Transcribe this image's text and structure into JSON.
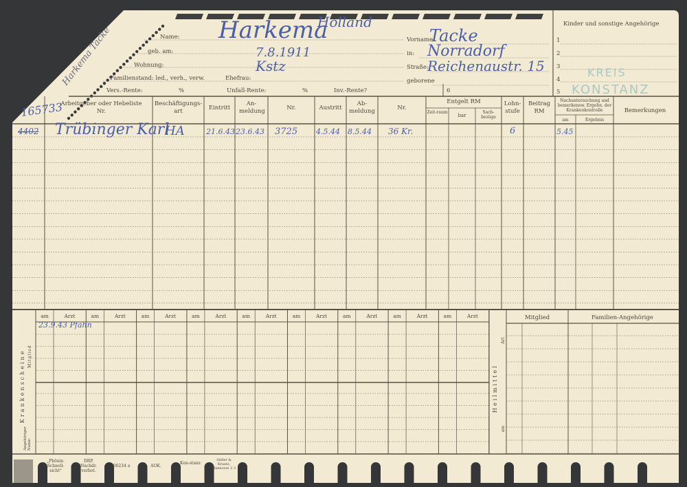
{
  "card_number": "165733",
  "margin_name": "Harkema Tacke",
  "header": {
    "name_label": "Name:",
    "name_value": "Harkema",
    "nationality_value": "Holland",
    "geb_label": "geb. am:",
    "geb_value": "7.8.1911",
    "wohnung_label": "Wohnung:",
    "wohnung_value": "Kstz",
    "familienstand_label": "Familienstand: led., verh., verw.",
    "ehefrau_label": "Ehefrau:",
    "vers_rente_label": "Vers.-Rente:",
    "percent_1": "%",
    "unfall_rente_label": "Unfall-Rente:",
    "percent_2": "%",
    "inv_rente_label": "Inv.-Rente?",
    "vorname_label": "Vorname:",
    "vorname_value": "Tacke",
    "in_label": "in:",
    "in_value": "Norradorf",
    "strasse_label": "Straße:",
    "strasse_value": "Reichenaustr. 15",
    "geborene_label": "geborene",
    "box_number": "6"
  },
  "angehoerige": {
    "title": "Kinder und sonstige Angehörige",
    "numbers": [
      "1",
      "2",
      "3",
      "4",
      "5"
    ]
  },
  "stamp": {
    "line1": "KREIS",
    "line2": "KONSTANZ",
    "color": "#9cc3c6"
  },
  "table": {
    "headers": {
      "arbeitgeber": "Arbeitgeber oder Hebeliste Nr.",
      "beschaeftigung": "Beschäftigungs-art",
      "eintritt": "Eintritt",
      "anmeldung": "An-meldung",
      "nr1": "Nr.",
      "austritt": "Austritt",
      "abmeldung": "Ab-meldung",
      "nr2": "Nr.",
      "entgelt": "Entgelt RM",
      "zeitraum": "Zeit-raum",
      "bar": "bar",
      "sachbezuege": "Sach-bezüge",
      "lohnstufe": "Lohn-stufe",
      "beitrag": "Beitrag RM",
      "nachuntersuchung": "Nachuntersuchung und bemerkensw. Ergebn. der Krankenkontrolle",
      "am": "am",
      "ergebnis": "Ergebnis",
      "bemerkungen": "Bemerkungen"
    },
    "rows": [
      {
        "hebeliste": "4402",
        "arbeitgeber": "Trübinger Karl",
        "art": "HA",
        "eintritt": "21.6.43",
        "anmeldung": "23.6.43",
        "nr": "3725",
        "austritt": "4.5.44",
        "abmeldung": "8.5.44",
        "nr2": "36 Kr.",
        "lohnstufe": "6",
        "nachunt_am": "5.45"
      }
    ]
  },
  "krankenscheine": {
    "label": "Krankenscheine",
    "mitglied_label": "Mitglied",
    "angehoerige_label": "Angehöriger Name:",
    "col_am": "am",
    "col_arzt": "Arzt",
    "entry": "23.9.43 Pfahn"
  },
  "heilmittel": {
    "label": "Heilmittel",
    "art": "Art",
    "am": "am",
    "mitglied": "Mitglied",
    "familien": "Familien-Angehörige"
  },
  "tabs": [
    "„Phönix-Schnell-sicht“",
    "DRP. Nachdr. verbot.",
    "06234 a",
    "AOK.",
    "Kon-stanz",
    "Stiller & Kraatz, Hannover 2 3"
  ],
  "colors": {
    "card": "#f2ead2",
    "background": "#353638",
    "ink": "#4a5fa8"
  }
}
